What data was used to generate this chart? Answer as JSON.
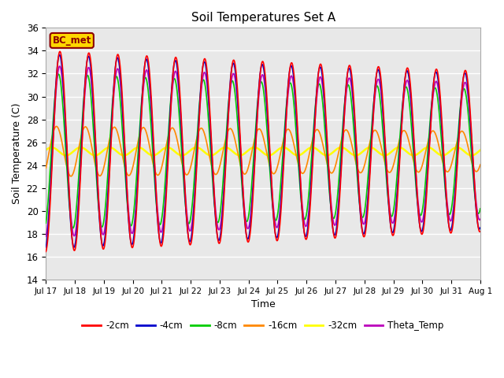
{
  "title": "Soil Temperatures Set A",
  "xlabel": "Time",
  "ylabel": "Soil Temperature (C)",
  "ylim": [
    14,
    36
  ],
  "annotation": "BC_met",
  "annotation_color": "#8B0000",
  "annotation_bg": "#FFD700",
  "bg_color": "#E8E8E8",
  "grid_color": "white",
  "legend_entries": [
    "-2cm",
    "-4cm",
    "-8cm",
    "-16cm",
    "-32cm",
    "Theta_Temp"
  ],
  "line_colors": [
    "#FF0000",
    "#0000CC",
    "#00CC00",
    "#FF8800",
    "#FFFF00",
    "#BB00BB"
  ],
  "line_widths": [
    1.2,
    1.2,
    1.2,
    1.2,
    1.8,
    1.2
  ],
  "tick_dates": [
    "Jul 17",
    "Jul 18",
    "Jul 19",
    "Jul 20",
    "Jul 21",
    "Jul 22",
    "Jul 23",
    "Jul 24",
    "Jul 25",
    "Jul 26",
    "Jul 27",
    "Jul 28",
    "Jul 29",
    "Jul 30",
    "Jul 31",
    "Aug 1"
  ],
  "n_points": 1441,
  "mean": 25.2,
  "amp_2cm": 8.8,
  "amp_4cm": 8.5,
  "amp_8cm": 6.8,
  "amp_16cm": 2.2,
  "amp_32cm": 0.35,
  "amp_theta": 7.5,
  "phase_base": -1.47,
  "phase_4cm": 0.08,
  "phase_8cm": 0.3,
  "phase_16cm": 0.75,
  "phase_32cm": 1.8,
  "phase_theta": 0.05,
  "decay_factor": 0.015,
  "figsize": [
    6.4,
    4.8
  ],
  "dpi": 100
}
